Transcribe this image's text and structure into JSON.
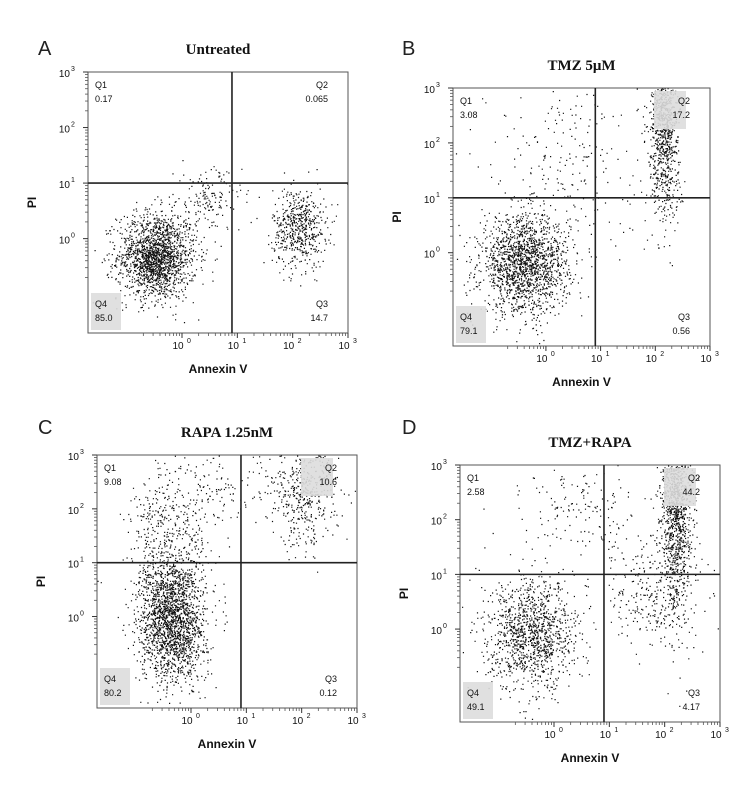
{
  "chart_data": [
    {
      "type": "scatter",
      "panel": "A",
      "title": "Untreated",
      "xlabel": "Annexin V",
      "ylabel": "PI",
      "x_scale": "log",
      "y_scale": "log",
      "xlim": [
        0.02,
        1000
      ],
      "ylim": [
        0.02,
        1000
      ],
      "x_ticks": [
        "10^0",
        "10^1",
        "10^2",
        "10^3"
      ],
      "y_ticks": [
        "10^0",
        "10^1",
        "10^2",
        "10^3"
      ],
      "gate_x": 8,
      "gate_y": 10,
      "quadrants": [
        {
          "name": "Q1",
          "value": "0.17"
        },
        {
          "name": "Q2",
          "value": "0.065"
        },
        {
          "name": "Q3",
          "value": "14.7"
        },
        {
          "name": "Q4",
          "value": "85.0"
        }
      ],
      "clusters": [
        {
          "x": 0.35,
          "y": 0.5,
          "sx": 0.18,
          "sy": 0.2,
          "n": 1500
        },
        {
          "x": 0.3,
          "y": 0.4,
          "sx": 0.08,
          "sy": 0.12,
          "n": 300
        },
        {
          "x": 130,
          "y": 1.6,
          "sx": 0.12,
          "sy": 0.18,
          "n": 550
        },
        {
          "x": 3,
          "y": 5,
          "sx": 0.15,
          "sy": 0.15,
          "n": 150
        }
      ]
    },
    {
      "type": "scatter",
      "panel": "B",
      "title": "TMZ 5μM",
      "xlabel": "Annexin V",
      "ylabel": "PI",
      "x_scale": "log",
      "y_scale": "log",
      "xlim": [
        0.02,
        1000
      ],
      "ylim": [
        0.02,
        1000
      ],
      "x_ticks": [
        "10^0",
        "10^1",
        "10^2",
        "10^3"
      ],
      "y_ticks": [
        "10^0",
        "10^1",
        "10^2",
        "10^3"
      ],
      "gate_x": 8,
      "gate_y": 10,
      "quadrants": [
        {
          "name": "Q1",
          "value": "3.08"
        },
        {
          "name": "Q2",
          "value": "17.2"
        },
        {
          "name": "Q3",
          "value": "0.56"
        },
        {
          "name": "Q4",
          "value": "79.1"
        }
      ],
      "clusters": [
        {
          "x": 0.4,
          "y": 0.6,
          "sx": 0.2,
          "sy": 0.22,
          "n": 1700
        },
        {
          "x": 140,
          "y": 300,
          "sx": 0.06,
          "sy": 0.3,
          "n": 600
        },
        {
          "x": 150,
          "y": 30,
          "sx": 0.08,
          "sy": 0.35,
          "n": 250
        },
        {
          "x": 2,
          "y": 60,
          "sx": 0.35,
          "sy": 0.45,
          "n": 250
        }
      ]
    },
    {
      "type": "scatter",
      "panel": "C",
      "title": "RAPA 1.25nM",
      "xlabel": "Annexin V",
      "ylabel": "PI",
      "x_scale": "log",
      "y_scale": "log",
      "xlim": [
        0.02,
        1000
      ],
      "ylim": [
        0.02,
        1000
      ],
      "x_ticks": [
        "10^0",
        "10^1",
        "10^2",
        "10^3"
      ],
      "y_ticks": [
        "10^0",
        "10^1",
        "10^2",
        "10^3"
      ],
      "gate_x": 8,
      "gate_y": 10,
      "quadrants": [
        {
          "name": "Q1",
          "value": "9.08"
        },
        {
          "name": "Q2",
          "value": "10.6"
        },
        {
          "name": "Q3",
          "value": "0.12"
        },
        {
          "name": "Q4",
          "value": "80.2"
        }
      ],
      "clusters": [
        {
          "x": 0.45,
          "y": 0.9,
          "sx": 0.15,
          "sy": 0.3,
          "n": 2000
        },
        {
          "x": 0.4,
          "y": 40,
          "sx": 0.2,
          "sy": 0.3,
          "n": 350
        },
        {
          "x": 110,
          "y": 200,
          "sx": 0.15,
          "sy": 0.25,
          "n": 450
        },
        {
          "x": 3,
          "y": 200,
          "sx": 0.3,
          "sy": 0.2,
          "n": 150
        }
      ]
    },
    {
      "type": "scatter",
      "panel": "D",
      "title": "TMZ+RAPA",
      "xlabel": "Annexin V",
      "ylabel": "PI",
      "x_scale": "log",
      "y_scale": "log",
      "xlim": [
        0.02,
        1000
      ],
      "ylim": [
        0.02,
        1000
      ],
      "x_ticks": [
        "10^0",
        "10^1",
        "10^2",
        "10^3"
      ],
      "y_ticks": [
        "10^0",
        "10^1",
        "10^2",
        "10^3"
      ],
      "gate_x": 8,
      "gate_y": 10,
      "quadrants": [
        {
          "name": "Q1",
          "value": "2.58"
        },
        {
          "name": "Q2",
          "value": "44.2"
        },
        {
          "name": "Q3",
          "value": "4.17"
        },
        {
          "name": "Q4",
          "value": "49.1"
        }
      ],
      "clusters": [
        {
          "x": 0.4,
          "y": 0.8,
          "sx": 0.2,
          "sy": 0.25,
          "n": 1200
        },
        {
          "x": 160,
          "y": 150,
          "sx": 0.07,
          "sy": 0.45,
          "n": 1100
        },
        {
          "x": 60,
          "y": 5,
          "sx": 0.25,
          "sy": 0.25,
          "n": 300
        },
        {
          "x": 3,
          "y": 150,
          "sx": 0.25,
          "sy": 0.2,
          "n": 150
        }
      ]
    }
  ]
}
